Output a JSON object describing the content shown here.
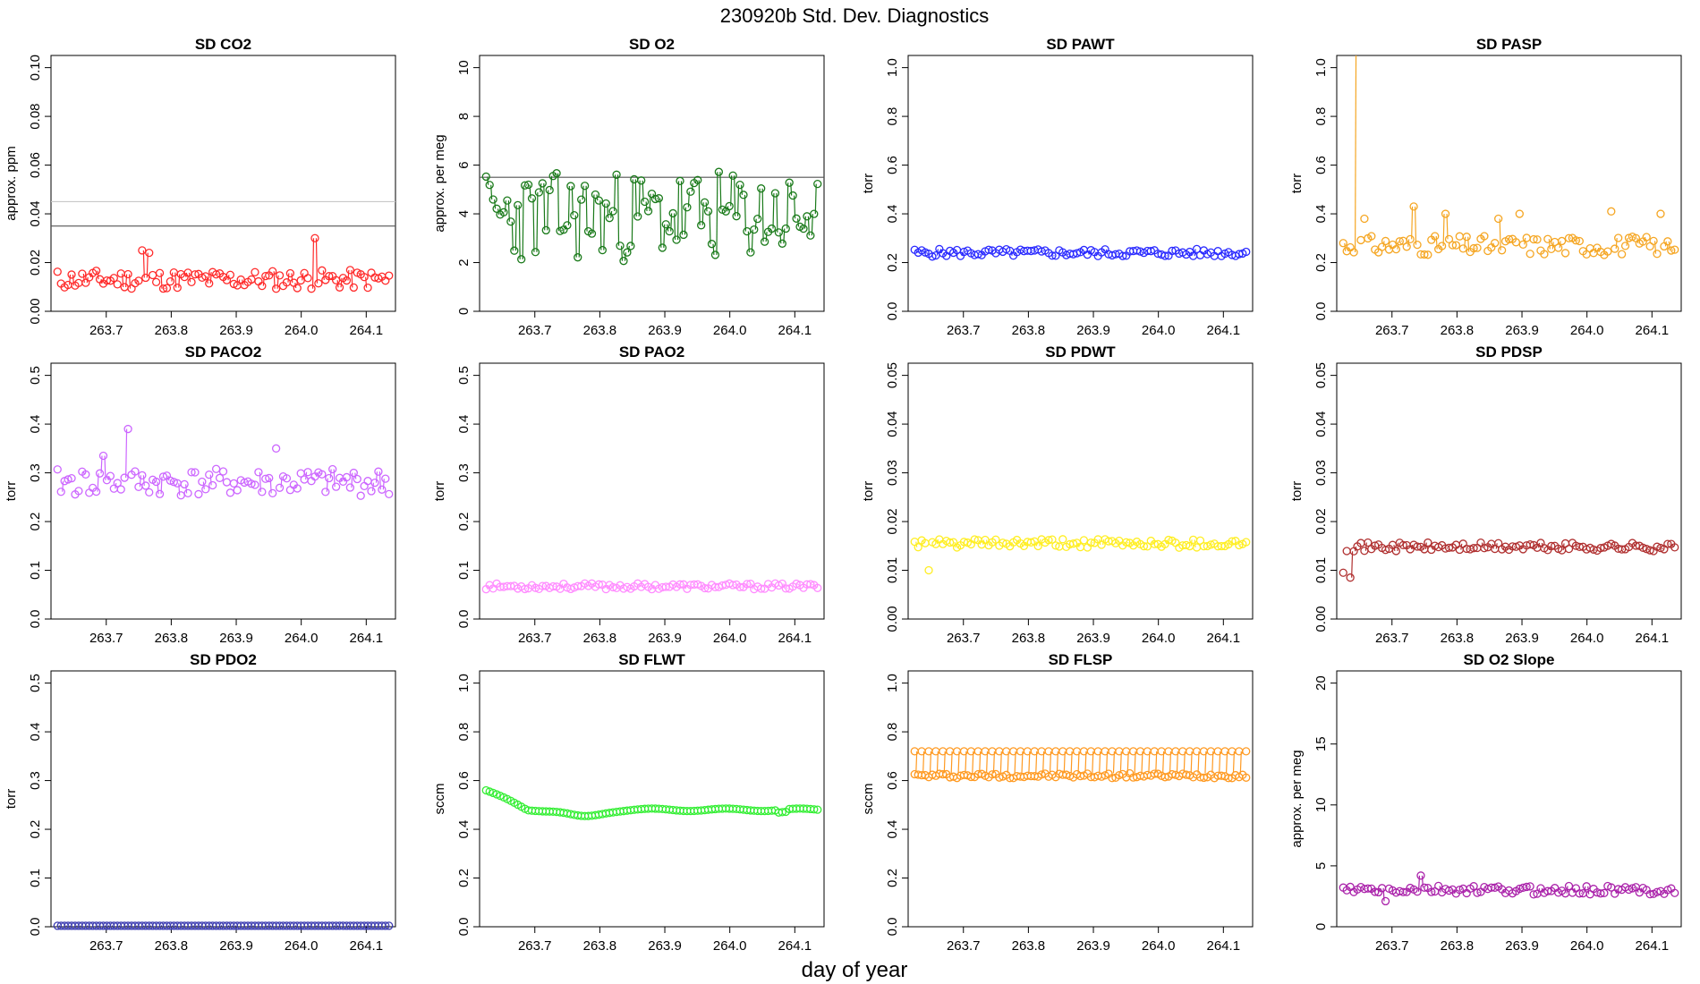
{
  "figure": {
    "title": "230920b   Std. Dev. Diagnostics",
    "xlabel": "day of year"
  },
  "chart_data": [
    {
      "type": "scatter",
      "title": "SD CO2",
      "ylabel": "approx. ppm",
      "color": "#ff2a2a",
      "ylim": [
        0,
        0.105
      ],
      "yticks": [
        "0.00",
        "0.02",
        "0.04",
        "0.06",
        "0.08",
        "0.10"
      ],
      "yvals": [
        0,
        0.02,
        0.04,
        0.06,
        0.08,
        0.1
      ],
      "hlines": [
        {
          "y": 0.035,
          "color": "#555555"
        },
        {
          "y": 0.045,
          "color": "#c8c8c8"
        }
      ],
      "base": 0.013,
      "noise": 0.004,
      "mode": "spiky",
      "seed": 11,
      "spikes": [
        [
          0.755,
          0.025
        ],
        [
          0.767,
          0.024
        ],
        [
          1.02,
          0.03
        ]
      ]
    },
    {
      "type": "scatter",
      "title": "SD O2",
      "ylabel": "approx. per meg",
      "color": "#1a7a1a",
      "ylim": [
        0,
        10.5
      ],
      "yticks": [
        "0",
        "2",
        "4",
        "6",
        "8",
        "10"
      ],
      "yvals": [
        0,
        2,
        4,
        6,
        8,
        10
      ],
      "hlines": [
        {
          "y": 5.5,
          "color": "#555555"
        }
      ],
      "base": 3.9,
      "noise": 0.85,
      "mode": "wild",
      "seed": 23,
      "spikes": []
    },
    {
      "type": "scatter",
      "title": "SD PAWT",
      "ylabel": "torr",
      "color": "#2a2aff",
      "ylim": [
        0,
        1.05
      ],
      "yticks": [
        "0.0",
        "0.2",
        "0.4",
        "0.6",
        "0.8",
        "1.0"
      ],
      "yvals": [
        0,
        0.2,
        0.4,
        0.6,
        0.8,
        1.0
      ],
      "hlines": [],
      "base": 0.24,
      "noise": 0.016,
      "mode": "smooth",
      "seed": 5,
      "spikes": []
    },
    {
      "type": "scatter",
      "title": "SD PASP",
      "ylabel": "torr",
      "color": "#f5a623",
      "ylim": [
        0,
        1.05
      ],
      "yticks": [
        "0.0",
        "0.2",
        "0.4",
        "0.6",
        "0.8",
        "1.0"
      ],
      "yvals": [
        0,
        0.2,
        0.4,
        0.6,
        0.8,
        1.0
      ],
      "hlines": [],
      "base": 0.27,
      "noise": 0.04,
      "mode": "spiky",
      "seed": 31,
      "spikes": [
        [
          0.648,
          1.2
        ],
        [
          0.655,
          0.38
        ],
        [
          0.735,
          0.43
        ],
        [
          0.782,
          0.4
        ],
        [
          0.862,
          0.38
        ],
        [
          0.897,
          0.4
        ],
        [
          1.038,
          0.41
        ],
        [
          1.114,
          0.4
        ]
      ]
    },
    {
      "type": "scatter",
      "title": "SD PACO2",
      "ylabel": "torr",
      "color": "#cc66ff",
      "ylim": [
        0,
        0.525
      ],
      "yticks": [
        "0.0",
        "0.1",
        "0.2",
        "0.3",
        "0.4",
        "0.5"
      ],
      "yvals": [
        0,
        0.1,
        0.2,
        0.3,
        0.4,
        0.5
      ],
      "hlines": [],
      "base": 0.28,
      "noise": 0.028,
      "mode": "spiky",
      "seed": 41,
      "spikes": [
        [
          0.735,
          0.39
        ],
        [
          0.96,
          0.35
        ],
        [
          0.695,
          0.335
        ]
      ]
    },
    {
      "type": "scatter",
      "title": "SD PAO2",
      "ylabel": "torr",
      "color": "#ff8cff",
      "ylim": [
        0,
        0.525
      ],
      "yticks": [
        "0.0",
        "0.1",
        "0.2",
        "0.3",
        "0.4",
        "0.5"
      ],
      "yvals": [
        0,
        0.1,
        0.2,
        0.3,
        0.4,
        0.5
      ],
      "hlines": [],
      "base": 0.067,
      "noise": 0.006,
      "mode": "smooth",
      "seed": 53,
      "spikes": []
    },
    {
      "type": "scatter",
      "title": "SD PDWT",
      "ylabel": "torr",
      "color": "#ffee22",
      "ylim": [
        0,
        0.0525
      ],
      "yticks": [
        "0.00",
        "0.01",
        "0.02",
        "0.03",
        "0.04",
        "0.05"
      ],
      "yvals": [
        0,
        0.01,
        0.02,
        0.03,
        0.04,
        0.05
      ],
      "hlines": [],
      "base": 0.0155,
      "noise": 0.0009,
      "mode": "smooth",
      "seed": 61,
      "spikes": [
        [
          0.648,
          0.01
        ]
      ]
    },
    {
      "type": "scatter",
      "title": "SD PDSP",
      "ylabel": "torr",
      "color": "#b03030",
      "ylim": [
        0,
        0.0525
      ],
      "yticks": [
        "0.00",
        "0.01",
        "0.02",
        "0.03",
        "0.04",
        "0.05"
      ],
      "yvals": [
        0,
        0.01,
        0.02,
        0.03,
        0.04,
        0.05
      ],
      "hlines": [],
      "base": 0.0148,
      "noise": 0.0009,
      "mode": "smooth",
      "seed": 71,
      "spikes": [
        [
          0.635,
          0.0085
        ],
        [
          0.625,
          0.0095
        ]
      ]
    },
    {
      "type": "scatter",
      "title": "SD PDO2",
      "ylabel": "torr",
      "color": "#3a3ab0",
      "ylim": [
        0,
        0.525
      ],
      "yticks": [
        "0.0",
        "0.1",
        "0.2",
        "0.3",
        "0.4",
        "0.5"
      ],
      "yvals": [
        0,
        0.1,
        0.2,
        0.3,
        0.4,
        0.5
      ],
      "hlines": [],
      "base": 0.002,
      "noise": 0.0,
      "mode": "smooth",
      "seed": 83,
      "spikes": []
    },
    {
      "type": "scatter",
      "title": "SD FLWT",
      "ylabel": "sccm",
      "color": "#33ee33",
      "ylim": [
        0,
        1.05
      ],
      "yticks": [
        "0.0",
        "0.2",
        "0.4",
        "0.6",
        "0.8",
        "1.0"
      ],
      "yvals": [
        0,
        0.2,
        0.4,
        0.6,
        0.8,
        1.0
      ],
      "hlines": [],
      "base": 0.48,
      "noise": 0.0,
      "mode": "flow",
      "seed": 91,
      "spikes": []
    },
    {
      "type": "scatter",
      "title": "SD FLSP",
      "ylabel": "sccm",
      "color": "#ff9a22",
      "ylim": [
        0,
        1.05
      ],
      "yticks": [
        "0.0",
        "0.2",
        "0.4",
        "0.6",
        "0.8",
        "1.0"
      ],
      "yvals": [
        0,
        0.2,
        0.4,
        0.6,
        0.8,
        1.0
      ],
      "hlines": [],
      "base": 0.62,
      "noise": 0.0,
      "mode": "dual",
      "seed": 97,
      "spikes": []
    },
    {
      "type": "scatter",
      "title": "SD O2 Slope",
      "ylabel": "approx. per meg",
      "color": "#aa22aa",
      "ylim": [
        0,
        21
      ],
      "yticks": [
        "0",
        "5",
        "10",
        "15",
        "20"
      ],
      "yvals": [
        0,
        5,
        10,
        15,
        20
      ],
      "hlines": [],
      "base": 3.0,
      "noise": 0.35,
      "mode": "spiky",
      "seed": 103,
      "spikes": [
        [
          0.745,
          4.2
        ],
        [
          0.69,
          2.1
        ]
      ]
    }
  ],
  "x_axis": {
    "xlim": [
      263.615,
      264.145
    ],
    "ticks": [
      "263.7",
      "263.8",
      "263.9",
      "264.0",
      "264.1"
    ],
    "tick_values": [
      263.7,
      263.8,
      263.9,
      264.0,
      264.1
    ],
    "x_start": 263.625,
    "x_end": 264.135,
    "n_points": 95
  }
}
